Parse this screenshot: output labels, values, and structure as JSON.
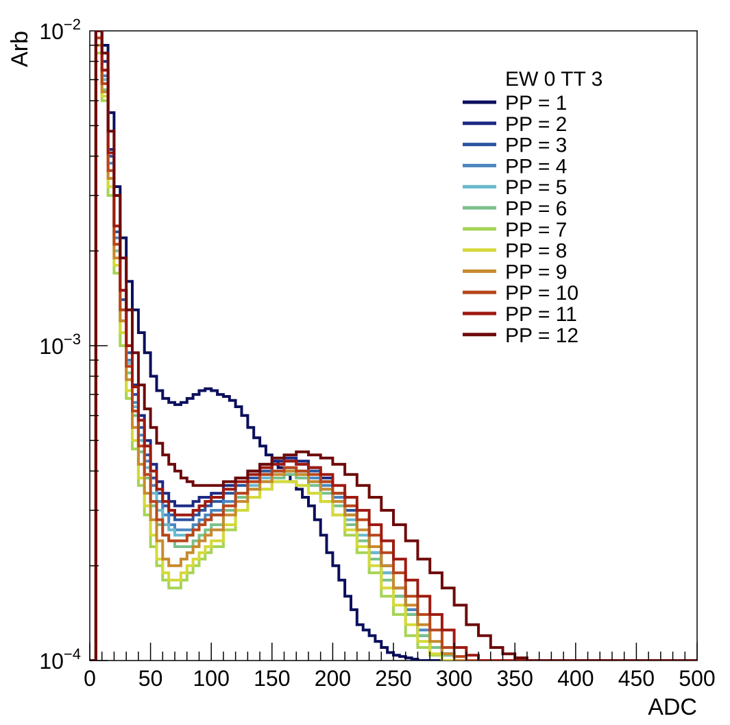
{
  "chart_data": {
    "type": "line",
    "title": "",
    "xlabel": "ADC",
    "ylabel": "Arb",
    "xlim": [
      0,
      500
    ],
    "ylim": [
      0.0001,
      0.01
    ],
    "yscale": "log",
    "grid": false,
    "legend_position": "top-right",
    "legend_title": "EW 0 TT 3",
    "x_ticks": [
      "0",
      "50",
      "100",
      "150",
      "200",
      "250",
      "300",
      "350",
      "400",
      "450",
      "500"
    ],
    "y_ticks": [
      {
        "value": 0.01,
        "mantissa": "10",
        "exponent": "−2"
      },
      {
        "value": 0.001,
        "mantissa": "10",
        "exponent": "−3"
      },
      {
        "value": 0.0001,
        "mantissa": "10",
        "exponent": "−4"
      }
    ],
    "series": [
      {
        "name": "PP = 1",
        "color": "#0b0f5c",
        "x": [
          0,
          5,
          10,
          15,
          20,
          25,
          30,
          35,
          40,
          45,
          50,
          55,
          60,
          65,
          70,
          75,
          80,
          85,
          90,
          95,
          100,
          105,
          110,
          115,
          120,
          125,
          130,
          135,
          140,
          145,
          150,
          155,
          160,
          165,
          170,
          175,
          180,
          185,
          190,
          195,
          200,
          205,
          210,
          215,
          220,
          225,
          230,
          235,
          240,
          245,
          250,
          255,
          260,
          265,
          270,
          275,
          280,
          285,
          290,
          295,
          300
        ],
        "y": [
          0.0001,
          0.01,
          0.009,
          0.0055,
          0.0032,
          0.0022,
          0.0016,
          0.0013,
          0.0011,
          0.00095,
          0.0008,
          0.00072,
          0.00068,
          0.00066,
          0.00065,
          0.00066,
          0.00068,
          0.0007,
          0.00072,
          0.00073,
          0.00072,
          0.0007,
          0.00069,
          0.00067,
          0.00064,
          0.0006,
          0.00055,
          0.00051,
          0.00048,
          0.00045,
          0.00043,
          0.00041,
          0.00039,
          0.00037,
          0.00035,
          0.00033,
          0.00031,
          0.00028,
          0.00025,
          0.00022,
          0.0002,
          0.00018,
          0.00016,
          0.000145,
          0.00013,
          0.000125,
          0.00012,
          0.000115,
          0.00011,
          0.000106,
          0.000104,
          0.000103,
          0.000102,
          0.000101,
          0.0001,
          0.0001,
          0.0001,
          0.0001,
          0.0001,
          0.0001,
          0.0001
        ]
      },
      {
        "name": "PP = 2",
        "color": "#1b2a84",
        "x": [
          0,
          5,
          10,
          15,
          20,
          25,
          30,
          35,
          40,
          45,
          50,
          55,
          60,
          65,
          70,
          75,
          80,
          85,
          90,
          95,
          100,
          110,
          120,
          130,
          140,
          150,
          160,
          170,
          180,
          190,
          200,
          210,
          220,
          230,
          240,
          250,
          260,
          270,
          280,
          290,
          300,
          310,
          320
        ],
        "y": [
          0.0001,
          0.01,
          0.008,
          0.0042,
          0.0024,
          0.0015,
          0.001,
          0.00075,
          0.0006,
          0.0005,
          0.00042,
          0.00037,
          0.00034,
          0.00032,
          0.00031,
          0.00031,
          0.00031,
          0.00032,
          0.00033,
          0.00033,
          0.00034,
          0.00036,
          0.00038,
          0.0004,
          0.00042,
          0.00043,
          0.00044,
          0.00043,
          0.00041,
          0.00038,
          0.00034,
          0.0003,
          0.00026,
          0.00022,
          0.00019,
          0.00016,
          0.00014,
          0.00012,
          0.00011,
          0.000105,
          0.0001,
          0.0001,
          0.0001
        ]
      },
      {
        "name": "PP = 3",
        "color": "#2a54a0",
        "x": [
          0,
          5,
          10,
          15,
          20,
          25,
          30,
          35,
          40,
          45,
          50,
          55,
          60,
          65,
          70,
          75,
          80,
          85,
          90,
          95,
          100,
          110,
          120,
          130,
          140,
          150,
          160,
          170,
          180,
          190,
          200,
          210,
          220,
          230,
          240,
          250,
          260,
          270,
          280,
          290,
          300,
          310,
          320
        ],
        "y": [
          0.0001,
          0.01,
          0.0075,
          0.004,
          0.0023,
          0.0014,
          0.00095,
          0.0007,
          0.00055,
          0.00045,
          0.00038,
          0.00034,
          0.00031,
          0.00029,
          0.00028,
          0.00028,
          0.00028,
          0.00029,
          0.0003,
          0.00031,
          0.00032,
          0.00034,
          0.00036,
          0.00038,
          0.0004,
          0.00042,
          0.00043,
          0.00042,
          0.0004,
          0.00037,
          0.00034,
          0.0003,
          0.00026,
          0.00023,
          0.0002,
          0.00017,
          0.000145,
          0.000125,
          0.00011,
          0.000105,
          0.0001,
          0.0001,
          0.0001
        ]
      },
      {
        "name": "PP = 4",
        "color": "#4a86c0",
        "x": [
          0,
          5,
          10,
          15,
          20,
          25,
          30,
          35,
          40,
          45,
          50,
          55,
          60,
          65,
          70,
          75,
          80,
          85,
          90,
          95,
          100,
          110,
          120,
          130,
          140,
          150,
          160,
          170,
          180,
          190,
          200,
          210,
          220,
          230,
          240,
          250,
          260,
          270,
          280,
          290,
          300,
          310,
          320
        ],
        "y": [
          0.0001,
          0.01,
          0.0072,
          0.0038,
          0.0022,
          0.0013,
          0.0009,
          0.00066,
          0.00052,
          0.00043,
          0.00036,
          0.00032,
          0.00029,
          0.00027,
          0.00026,
          0.00026,
          0.00026,
          0.00027,
          0.00028,
          0.00029,
          0.0003,
          0.00032,
          0.00034,
          0.00037,
          0.00039,
          0.0004,
          0.00041,
          0.0004,
          0.00038,
          0.00036,
          0.00033,
          0.00029,
          0.00026,
          0.00023,
          0.0002,
          0.00017,
          0.000145,
          0.000125,
          0.00011,
          0.000104,
          0.0001,
          0.0001,
          0.0001
        ]
      },
      {
        "name": "PP = 5",
        "color": "#6ab8cc",
        "x": [
          0,
          5,
          10,
          15,
          20,
          25,
          30,
          35,
          40,
          45,
          50,
          55,
          60,
          65,
          70,
          75,
          80,
          85,
          90,
          95,
          100,
          110,
          120,
          130,
          140,
          150,
          160,
          170,
          180,
          190,
          200,
          210,
          220,
          230,
          240,
          250,
          260,
          270,
          280,
          290,
          300,
          310
        ],
        "y": [
          0.0001,
          0.01,
          0.007,
          0.0036,
          0.0021,
          0.0013,
          0.00088,
          0.00064,
          0.0005,
          0.00041,
          0.00034,
          0.0003,
          0.00027,
          0.00026,
          0.00025,
          0.00025,
          0.00025,
          0.00026,
          0.00027,
          0.00028,
          0.00029,
          0.00031,
          0.00034,
          0.00036,
          0.00038,
          0.0004,
          0.0004,
          0.00039,
          0.00037,
          0.00035,
          0.00032,
          0.00028,
          0.00025,
          0.00022,
          0.00019,
          0.00016,
          0.00014,
          0.00012,
          0.00011,
          0.000104,
          0.0001,
          0.0001
        ]
      },
      {
        "name": "PP = 6",
        "color": "#7ac08c",
        "x": [
          0,
          5,
          10,
          15,
          20,
          25,
          30,
          35,
          40,
          45,
          50,
          55,
          60,
          65,
          70,
          75,
          80,
          85,
          90,
          95,
          100,
          110,
          120,
          130,
          140,
          150,
          160,
          170,
          180,
          190,
          200,
          210,
          220,
          230,
          240,
          250,
          260,
          270,
          280,
          290,
          300,
          310
        ],
        "y": [
          0.0001,
          0.009,
          0.0065,
          0.0034,
          0.002,
          0.0012,
          0.00082,
          0.0006,
          0.00046,
          0.00038,
          0.00031,
          0.00027,
          0.00025,
          0.00024,
          0.00023,
          0.00023,
          0.00023,
          0.00024,
          0.00025,
          0.00026,
          0.00027,
          0.0003,
          0.00033,
          0.00035,
          0.00037,
          0.00038,
          0.00039,
          0.00038,
          0.00036,
          0.00034,
          0.00031,
          0.00027,
          0.00024,
          0.00021,
          0.00018,
          0.00016,
          0.00014,
          0.00012,
          0.00011,
          0.000104,
          0.0001,
          0.0001
        ]
      },
      {
        "name": "PP = 7",
        "color": "#a6d455",
        "x": [
          0,
          5,
          10,
          15,
          20,
          25,
          30,
          35,
          40,
          45,
          50,
          55,
          60,
          65,
          70,
          75,
          80,
          85,
          90,
          95,
          100,
          110,
          120,
          130,
          140,
          150,
          160,
          170,
          180,
          190,
          200,
          210,
          220,
          230,
          240,
          250,
          260,
          270,
          280,
          290,
          300
        ],
        "y": [
          0.0001,
          0.0085,
          0.006,
          0.003,
          0.0017,
          0.001,
          0.00068,
          0.00047,
          0.00036,
          0.00029,
          0.00023,
          0.0002,
          0.00018,
          0.00017,
          0.00017,
          0.00018,
          0.00019,
          0.0002,
          0.00021,
          0.00022,
          0.00023,
          0.00026,
          0.0003,
          0.00033,
          0.00035,
          0.00037,
          0.00037,
          0.00036,
          0.00034,
          0.00032,
          0.00029,
          0.00025,
          0.00022,
          0.00019,
          0.00016,
          0.00014,
          0.00012,
          0.00011,
          0.000104,
          0.0001,
          0.0001
        ]
      },
      {
        "name": "PP = 8",
        "color": "#d4d93a",
        "x": [
          0,
          5,
          10,
          15,
          20,
          25,
          30,
          35,
          40,
          45,
          50,
          55,
          60,
          65,
          70,
          75,
          80,
          85,
          90,
          95,
          100,
          110,
          120,
          130,
          140,
          150,
          160,
          170,
          180,
          190,
          200,
          210,
          220,
          230,
          240,
          250,
          260,
          270,
          280,
          290,
          300
        ],
        "y": [
          0.0001,
          0.009,
          0.0062,
          0.0032,
          0.0018,
          0.0011,
          0.00072,
          0.0005,
          0.00038,
          0.00031,
          0.00025,
          0.00021,
          0.00019,
          0.00018,
          0.00018,
          0.00019,
          0.0002,
          0.00021,
          0.00022,
          0.00023,
          0.00024,
          0.00027,
          0.0003,
          0.00033,
          0.00035,
          0.00037,
          0.00037,
          0.00036,
          0.00034,
          0.00032,
          0.00029,
          0.00026,
          0.00023,
          0.0002,
          0.00017,
          0.00015,
          0.00013,
          0.000115,
          0.000105,
          0.0001,
          0.0001
        ]
      },
      {
        "name": "PP = 9",
        "color": "#c88a2e",
        "x": [
          0,
          5,
          10,
          15,
          20,
          25,
          30,
          35,
          40,
          45,
          50,
          55,
          60,
          65,
          70,
          75,
          80,
          85,
          90,
          95,
          100,
          110,
          120,
          130,
          140,
          150,
          160,
          170,
          180,
          190,
          200,
          210,
          220,
          230,
          240,
          250,
          260,
          270,
          280,
          290,
          300,
          310
        ],
        "y": [
          0.0001,
          0.009,
          0.0064,
          0.0034,
          0.0019,
          0.0012,
          0.00078,
          0.00055,
          0.00042,
          0.00034,
          0.00028,
          0.00024,
          0.00021,
          0.0002,
          0.0002,
          0.00021,
          0.00022,
          0.00023,
          0.00024,
          0.00025,
          0.00026,
          0.00029,
          0.00032,
          0.00035,
          0.00037,
          0.00039,
          0.0004,
          0.00039,
          0.00037,
          0.00035,
          0.00032,
          0.00029,
          0.00026,
          0.00023,
          0.0002,
          0.00017,
          0.00015,
          0.00013,
          0.000115,
          0.000105,
          0.0001,
          0.0001
        ]
      },
      {
        "name": "PP = 10",
        "color": "#b8461b",
        "x": [
          0,
          5,
          10,
          15,
          20,
          25,
          30,
          35,
          40,
          45,
          50,
          55,
          60,
          65,
          70,
          75,
          80,
          85,
          90,
          95,
          100,
          110,
          120,
          130,
          140,
          150,
          160,
          170,
          180,
          190,
          200,
          210,
          220,
          230,
          240,
          250,
          260,
          270,
          280,
          290,
          300,
          310,
          320
        ],
        "y": [
          0.0001,
          0.0095,
          0.0068,
          0.0036,
          0.0021,
          0.0013,
          0.00086,
          0.00062,
          0.00048,
          0.00039,
          0.00032,
          0.00028,
          0.00025,
          0.00024,
          0.00024,
          0.00024,
          0.00025,
          0.00026,
          0.00027,
          0.00028,
          0.00029,
          0.00031,
          0.00034,
          0.00037,
          0.00039,
          0.0004,
          0.00041,
          0.0004,
          0.00039,
          0.00037,
          0.00034,
          0.00031,
          0.00028,
          0.00025,
          0.00022,
          0.00019,
          0.00016,
          0.00014,
          0.000125,
          0.00011,
          0.000103,
          0.0001,
          0.0001
        ]
      },
      {
        "name": "PP = 11",
        "color": "#9e1a10",
        "x": [
          0,
          5,
          10,
          15,
          20,
          25,
          30,
          35,
          40,
          45,
          50,
          55,
          60,
          65,
          70,
          75,
          80,
          85,
          90,
          95,
          100,
          110,
          120,
          130,
          140,
          150,
          160,
          170,
          180,
          190,
          200,
          210,
          220,
          230,
          240,
          250,
          260,
          270,
          280,
          290,
          300,
          310,
          320,
          330
        ],
        "y": [
          0.0001,
          0.01,
          0.0075,
          0.0041,
          0.0024,
          0.0015,
          0.001,
          0.00074,
          0.00058,
          0.00048,
          0.0004,
          0.00035,
          0.00032,
          0.0003,
          0.00029,
          0.00029,
          0.00029,
          0.0003,
          0.00031,
          0.00032,
          0.00033,
          0.00035,
          0.00037,
          0.00039,
          0.00041,
          0.00042,
          0.00043,
          0.00042,
          0.00041,
          0.00039,
          0.00036,
          0.00033,
          0.0003,
          0.00027,
          0.00024,
          0.00021,
          0.00018,
          0.00016,
          0.00014,
          0.000125,
          0.00011,
          0.000104,
          0.0001,
          0.0001
        ]
      },
      {
        "name": "PP = 12",
        "color": "#6e0a0a",
        "x": [
          0,
          5,
          10,
          15,
          20,
          25,
          30,
          35,
          40,
          45,
          50,
          55,
          60,
          65,
          70,
          75,
          80,
          85,
          90,
          95,
          100,
          110,
          120,
          130,
          140,
          150,
          160,
          170,
          180,
          190,
          200,
          210,
          220,
          230,
          240,
          250,
          260,
          270,
          280,
          290,
          300,
          310,
          320,
          330,
          340,
          350,
          360,
          370
        ],
        "y": [
          0.0001,
          0.01,
          0.0085,
          0.0048,
          0.003,
          0.0019,
          0.0013,
          0.00095,
          0.00075,
          0.00063,
          0.00055,
          0.00049,
          0.00045,
          0.00042,
          0.0004,
          0.00038,
          0.00037,
          0.00036,
          0.00036,
          0.00036,
          0.00036,
          0.00037,
          0.00038,
          0.0004,
          0.00042,
          0.00044,
          0.00045,
          0.00046,
          0.00045,
          0.00044,
          0.00042,
          0.00039,
          0.00036,
          0.00033,
          0.0003,
          0.00027,
          0.00024,
          0.00021,
          0.00019,
          0.00017,
          0.00015,
          0.00013,
          0.00012,
          0.00011,
          0.000105,
          0.000102,
          0.0001,
          0.0001
        ]
      }
    ]
  }
}
